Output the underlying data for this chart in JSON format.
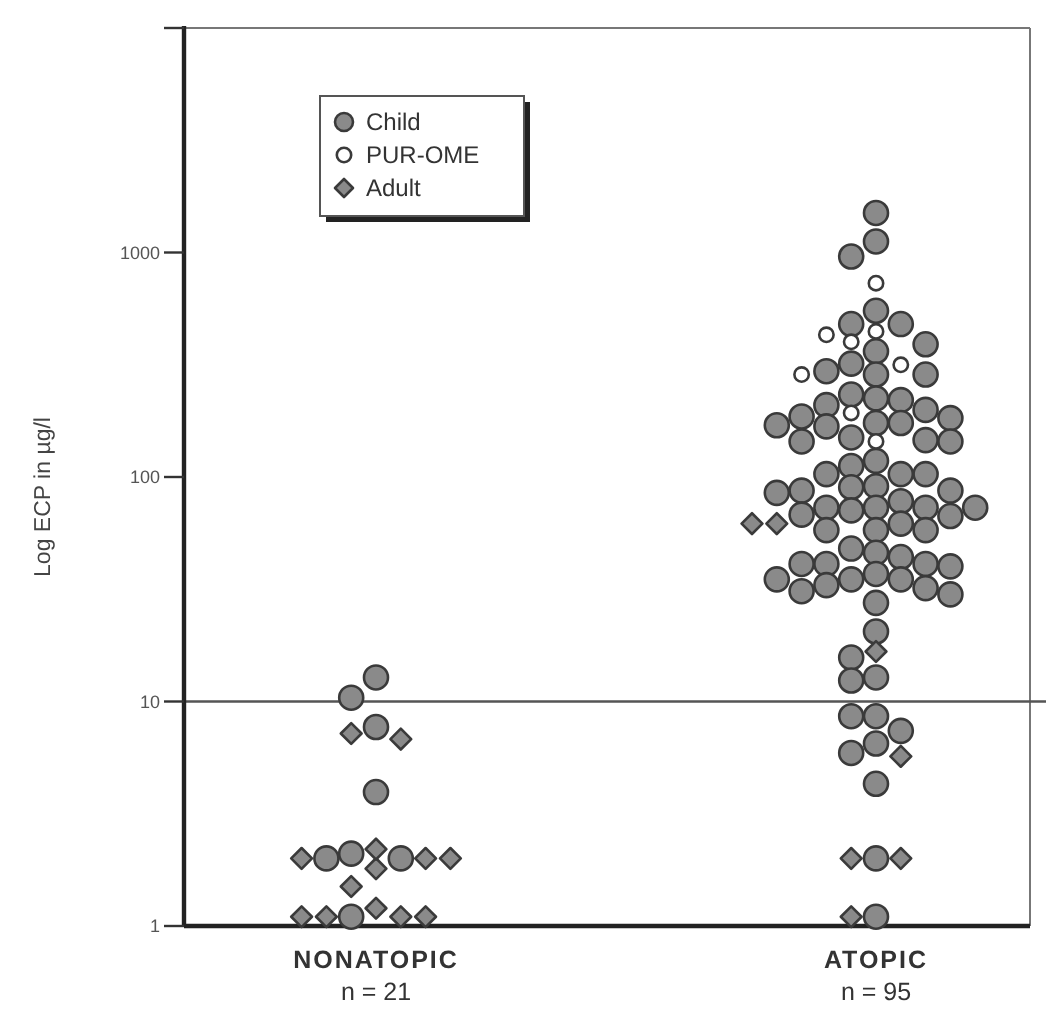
{
  "chart_data": {
    "type": "scatter",
    "ylabel": "Log ECP in µg/l",
    "log": "y",
    "ylim": [
      1,
      10000
    ],
    "yticks": [
      1,
      10,
      100,
      1000,
      {
        "value": 10000,
        "label": null
      }
    ],
    "categories": [
      "NONATOPIC\nn = 21",
      "ATOPIC\nn = 95"
    ],
    "grid": false,
    "legend": "top left",
    "ref_lines": [
      {
        "axis": "y",
        "value": 10
      }
    ],
    "series": [
      {
        "name": "Child",
        "color": "#8a8a8a",
        "marker": "circle",
        "x": [
          "NONATOPIC\nn = 21",
          "NONATOPIC\nn = 21",
          "NONATOPIC\nn = 21",
          "NONATOPIC\nn = 21",
          "NONATOPIC\nn = 21",
          "NONATOPIC\nn = 21",
          "NONATOPIC\nn = 21",
          "NONATOPIC\nn = 21",
          "ATOPIC\nn = 95",
          "ATOPIC\nn = 95",
          "ATOPIC\nn = 95",
          "ATOPIC\nn = 95",
          "ATOPIC\nn = 95",
          "ATOPIC\nn = 95",
          "ATOPIC\nn = 95",
          "ATOPIC\nn = 95",
          "ATOPIC\nn = 95",
          "ATOPIC\nn = 95",
          "ATOPIC\nn = 95",
          "ATOPIC\nn = 95",
          "ATOPIC\nn = 95",
          "ATOPIC\nn = 95",
          "ATOPIC\nn = 95",
          "ATOPIC\nn = 95",
          "ATOPIC\nn = 95",
          "ATOPIC\nn = 95",
          "ATOPIC\nn = 95",
          "ATOPIC\nn = 95",
          "ATOPIC\nn = 95",
          "ATOPIC\nn = 95",
          "ATOPIC\nn = 95",
          "ATOPIC\nn = 95",
          "ATOPIC\nn = 95",
          "ATOPIC\nn = 95",
          "ATOPIC\nn = 95",
          "ATOPIC\nn = 95",
          "ATOPIC\nn = 95",
          "ATOPIC\nn = 95",
          "ATOPIC\nn = 95",
          "ATOPIC\nn = 95",
          "ATOPIC\nn = 95",
          "ATOPIC\nn = 95",
          "ATOPIC\nn = 95",
          "ATOPIC\nn = 95",
          "ATOPIC\nn = 95",
          "ATOPIC\nn = 95",
          "ATOPIC\nn = 95",
          "ATOPIC\nn = 95",
          "ATOPIC\nn = 95",
          "ATOPIC\nn = 95",
          "ATOPIC\nn = 95",
          "ATOPIC\nn = 95",
          "ATOPIC\nn = 95",
          "ATOPIC\nn = 95",
          "ATOPIC\nn = 95",
          "ATOPIC\nn = 95",
          "ATOPIC\nn = 95",
          "ATOPIC\nn = 95",
          "ATOPIC\nn = 95",
          "ATOPIC\nn = 95",
          "ATOPIC\nn = 95",
          "ATOPIC\nn = 95",
          "ATOPIC\nn = 95",
          "ATOPIC\nn = 95",
          "ATOPIC\nn = 95",
          "ATOPIC\nn = 95",
          "ATOPIC\nn = 95",
          "ATOPIC\nn = 95",
          "ATOPIC\nn = 95",
          "ATOPIC\nn = 95",
          "ATOPIC\nn = 95",
          "ATOPIC\nn = 95",
          "ATOPIC\nn = 95",
          "ATOPIC\nn = 95",
          "ATOPIC\nn = 95",
          "ATOPIC\nn = 95",
          "ATOPIC\nn = 95",
          "ATOPIC\nn = 95",
          "ATOPIC\nn = 95",
          "ATOPIC\nn = 95",
          "ATOPIC\nn = 95",
          "ATOPIC\nn = 95",
          "ATOPIC\nn = 95",
          "ATOPIC\nn = 95",
          "ATOPIC\nn = 95"
        ],
        "values": [
          12.8,
          10.4,
          7.7,
          3.95,
          2.0,
          2.1,
          2.0,
          1.1,
          1500,
          1120,
          960,
          550,
          480,
          480,
          390,
          363,
          320,
          296,
          286,
          286,
          199,
          233,
          224,
          220,
          209,
          183,
          186,
          174,
          174,
          168,
          170,
          146,
          144,
          144,
          150,
          118,
          112,
          103,
          103,
          103,
          91,
          87,
          87,
          90,
          85,
          78,
          73,
          73,
          73,
          73,
          71,
          68,
          67,
          62,
          58,
          58,
          58,
          48,
          46,
          44,
          41,
          41,
          41,
          40,
          37,
          35,
          35,
          35,
          33,
          32,
          30,
          31,
          27.5,
          20.5,
          15.7,
          12.8,
          12.4,
          8.6,
          8.6,
          7.4,
          5.9,
          6.5,
          4.3,
          2.0,
          1.1
        ]
      },
      {
        "name": "PUR-OME",
        "color": "#ffffff",
        "marker": "circle",
        "x": [
          "ATOPIC\nn = 95",
          "ATOPIC\nn = 95",
          "ATOPIC\nn = 95",
          "ATOPIC\nn = 95",
          "ATOPIC\nn = 95",
          "ATOPIC\nn = 95",
          "ATOPIC\nn = 95",
          "ATOPIC\nn = 95"
        ],
        "values": [
          730,
          430,
          286,
          144,
          400,
          445,
          316,
          193
        ]
      },
      {
        "name": "Adult",
        "color": "#8a8a8a",
        "marker": "diamond",
        "x": [
          "NONATOPIC\nn = 21",
          "NONATOPIC\nn = 21",
          "NONATOPIC\nn = 21",
          "NONATOPIC\nn = 21",
          "NONATOPIC\nn = 21",
          "NONATOPIC\nn = 21",
          "NONATOPIC\nn = 21",
          "NONATOPIC\nn = 21",
          "NONATOPIC\nn = 21",
          "NONATOPIC\nn = 21",
          "NONATOPIC\nn = 21",
          "NONATOPIC\nn = 21",
          "NONATOPIC\nn = 21",
          "ATOPIC\nn = 95",
          "ATOPIC\nn = 95",
          "ATOPIC\nn = 95",
          "ATOPIC\nn = 95",
          "ATOPIC\nn = 95",
          "ATOPIC\nn = 95",
          "ATOPIC\nn = 95"
        ],
        "values": [
          6.8,
          7.2,
          2.0,
          2.0,
          1.8,
          2.2,
          2.0,
          1.5,
          1.1,
          1.1,
          1.1,
          1.2,
          1.1,
          16.7,
          5.7,
          2.0,
          2.0,
          1.1,
          62,
          62
        ]
      }
    ]
  }
}
